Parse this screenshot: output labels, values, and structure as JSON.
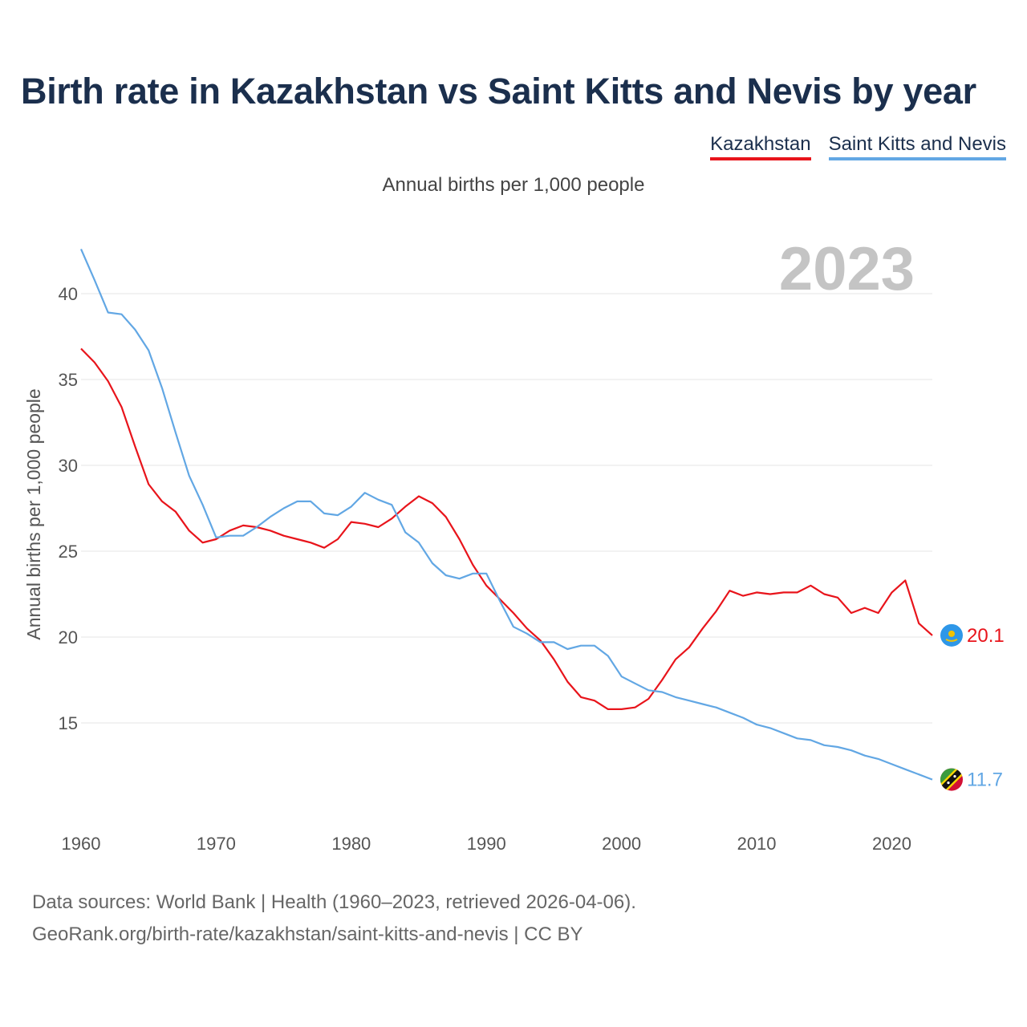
{
  "title": "Birth rate in Kazakhstan vs Saint Kitts and Nevis by year",
  "subtitle": "Annual births per 1,000 people",
  "year_label": "2023",
  "footer": {
    "line1": "Data sources: World Bank | Health (1960–2023, retrieved 2026-04-06).",
    "line2": "GeoRank.org/birth-rate/kazakhstan/saint-kitts-and-nevis | CC BY"
  },
  "legend": [
    {
      "name": "Kazakhstan",
      "color": "#e8141b"
    },
    {
      "name": "Saint Kitts and Nevis",
      "color": "#62a7e4"
    }
  ],
  "chart_data": {
    "type": "line",
    "ylabel": "Annual births per 1,000 people",
    "xlim": [
      1960,
      2023
    ],
    "ylim": [
      10.5,
      42.5
    ],
    "yticks": [
      15,
      20,
      25,
      30,
      35,
      40
    ],
    "xticks": [
      1960,
      1970,
      1980,
      1990,
      2000,
      2010,
      2020
    ],
    "grid": true,
    "x_start": 1960,
    "series": [
      {
        "name": "Kazakhstan",
        "color": "#e8141b",
        "end_label": "20.1",
        "end_icon": "kazakhstan-flag-icon",
        "values": [
          36.8,
          36.0,
          34.9,
          33.4,
          31.1,
          28.9,
          27.9,
          27.3,
          26.2,
          25.5,
          25.7,
          26.2,
          26.5,
          26.4,
          26.2,
          25.9,
          25.7,
          25.5,
          25.2,
          25.7,
          26.7,
          26.6,
          26.4,
          26.9,
          27.6,
          28.2,
          27.8,
          27.0,
          25.7,
          24.2,
          23.0,
          22.2,
          21.4,
          20.5,
          19.8,
          18.7,
          17.4,
          16.5,
          16.3,
          15.8,
          15.8,
          15.9,
          16.4,
          17.5,
          18.7,
          19.4,
          20.5,
          21.5,
          22.7,
          22.4,
          22.6,
          22.5,
          22.6,
          22.6,
          23.0,
          22.5,
          22.3,
          21.4,
          21.7,
          21.4,
          22.6,
          23.3,
          20.8,
          20.1
        ]
      },
      {
        "name": "Saint Kitts and Nevis",
        "color": "#62a7e4",
        "end_label": "11.7",
        "end_icon": "saint-kitts-and-nevis-flag-icon",
        "values": [
          42.6,
          40.8,
          38.9,
          38.8,
          37.9,
          36.7,
          34.5,
          31.9,
          29.4,
          27.7,
          25.8,
          25.9,
          25.9,
          26.4,
          27.0,
          27.5,
          27.9,
          27.9,
          27.2,
          27.1,
          27.6,
          28.4,
          28.0,
          27.7,
          26.1,
          25.5,
          24.3,
          23.6,
          23.4,
          23.7,
          23.7,
          22.1,
          20.6,
          20.2,
          19.7,
          19.7,
          19.3,
          19.5,
          19.5,
          18.9,
          17.7,
          17.3,
          16.9,
          16.8,
          16.5,
          16.3,
          16.1,
          15.9,
          15.6,
          15.3,
          14.9,
          14.7,
          14.4,
          14.1,
          14.0,
          13.7,
          13.6,
          13.4,
          13.1,
          12.9,
          12.6,
          12.3,
          12.0,
          11.7
        ]
      }
    ]
  }
}
